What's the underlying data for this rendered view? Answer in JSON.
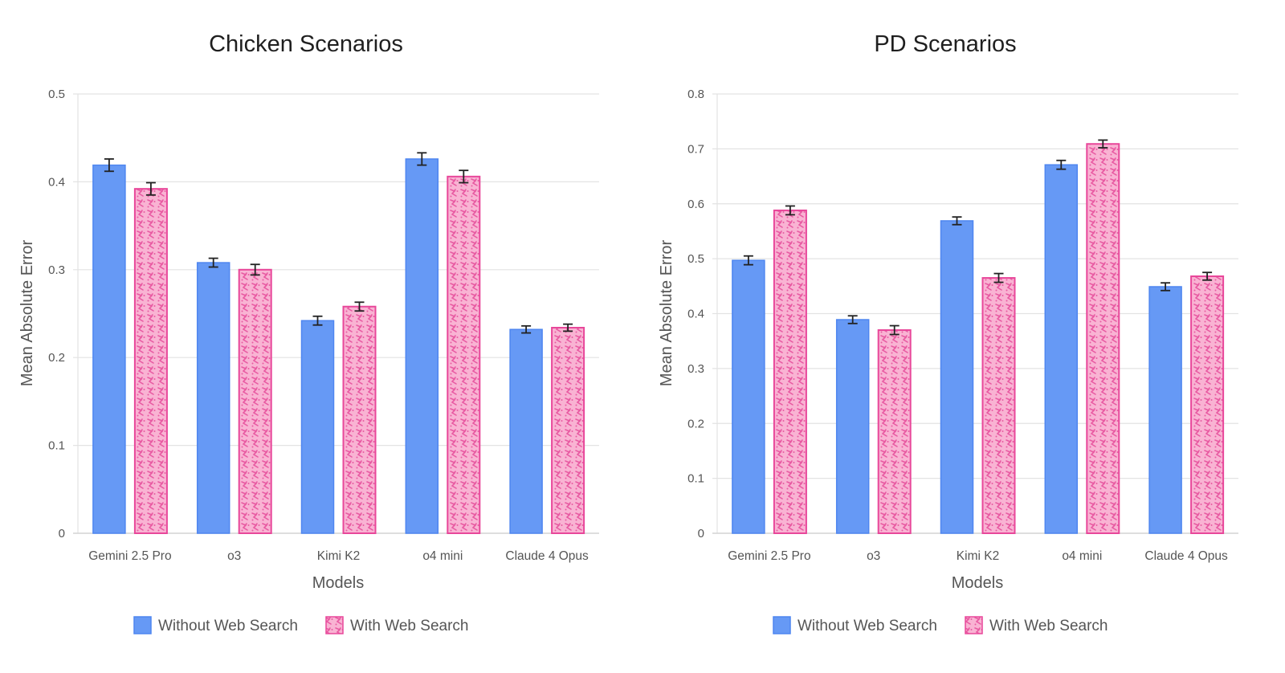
{
  "colors": {
    "without_fill": "#6699f5",
    "without_border": "#4f86f0",
    "with_fill": "#f9b3d3",
    "with_border": "#e8479a",
    "with_pattern": "#e85aa2",
    "grid": "#e3e3e3",
    "error_bar": "#222222"
  },
  "chart_data": [
    {
      "type": "bar",
      "title": "Chicken Scenarios",
      "xlabel": "Models",
      "ylabel": "Mean Absolute Error",
      "ylim": [
        0,
        0.5
      ],
      "yticks": [
        0,
        0.1,
        0.2,
        0.3,
        0.4,
        0.5
      ],
      "ytick_labels": [
        "0",
        "0.1",
        "0.2",
        "0.3",
        "0.4",
        "0.5"
      ],
      "grid": true,
      "legend_position": "bottom-center",
      "categories": [
        "Gemini 2.5 Pro",
        "o3",
        "Kimi K2",
        "o4 mini",
        "Claude 4 Opus"
      ],
      "series": [
        {
          "name": "Without Web Search",
          "values": [
            0.419,
            0.308,
            0.242,
            0.426,
            0.232
          ],
          "errors": [
            0.007,
            0.005,
            0.005,
            0.007,
            0.004
          ]
        },
        {
          "name": "With Web Search",
          "values": [
            0.392,
            0.3,
            0.258,
            0.406,
            0.234
          ],
          "errors": [
            0.007,
            0.006,
            0.005,
            0.007,
            0.004
          ]
        }
      ]
    },
    {
      "type": "bar",
      "title": "PD Scenarios",
      "xlabel": "Models",
      "ylabel": "Mean Absolute Error",
      "ylim": [
        0,
        0.8
      ],
      "yticks": [
        0,
        0.1,
        0.2,
        0.3,
        0.4,
        0.5,
        0.6,
        0.7,
        0.8
      ],
      "ytick_labels": [
        "0",
        "0.1",
        "0.2",
        "0.3",
        "0.4",
        "0.5",
        "0.6",
        "0.7",
        "0.8"
      ],
      "grid": true,
      "legend_position": "bottom-center",
      "categories": [
        "Gemini 2.5 Pro",
        "o3",
        "Kimi K2",
        "o4 mini",
        "Claude 4 Opus"
      ],
      "series": [
        {
          "name": "Without Web Search",
          "values": [
            0.497,
            0.389,
            0.569,
            0.671,
            0.449
          ],
          "errors": [
            0.008,
            0.007,
            0.007,
            0.008,
            0.007
          ]
        },
        {
          "name": "With Web Search",
          "values": [
            0.588,
            0.37,
            0.465,
            0.709,
            0.468
          ],
          "errors": [
            0.008,
            0.008,
            0.008,
            0.007,
            0.007
          ]
        }
      ]
    }
  ]
}
